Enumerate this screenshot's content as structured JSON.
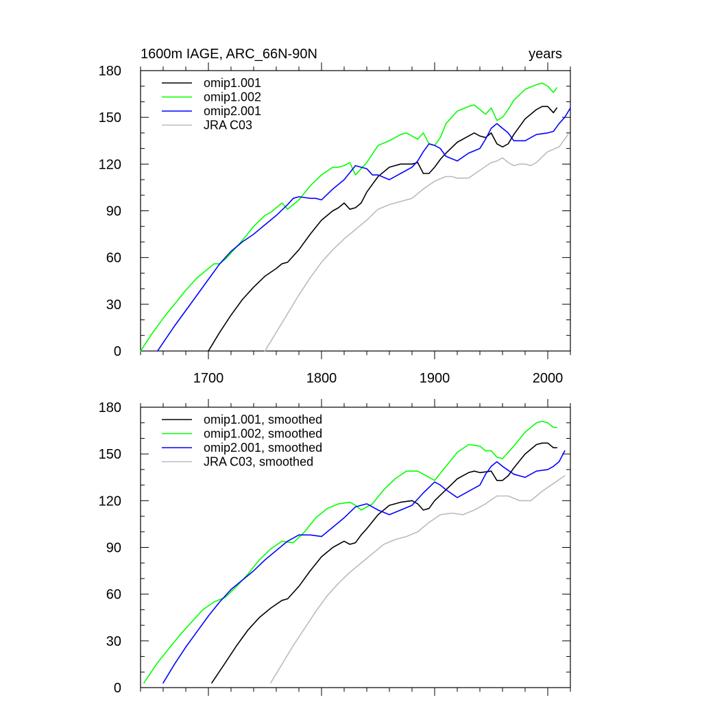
{
  "chart_data": [
    {
      "type": "line",
      "title": "1600m IAGE, ARC_66N-90N",
      "units": "years",
      "xlabel": "",
      "ylabel": "",
      "xlim": [
        1640,
        2020
      ],
      "ylim": [
        0,
        180
      ],
      "xticks": [
        1700,
        1800,
        1900,
        2000
      ],
      "yticks": [
        0,
        30,
        60,
        90,
        120,
        150,
        180
      ],
      "grid": false,
      "legend_position": "top-left",
      "series": [
        {
          "name": "omip1.001",
          "color": "#000000",
          "x": [
            1700,
            1710,
            1720,
            1730,
            1740,
            1750,
            1760,
            1765,
            1770,
            1780,
            1790,
            1800,
            1810,
            1815,
            1820,
            1825,
            1830,
            1835,
            1840,
            1850,
            1860,
            1870,
            1880,
            1885,
            1890,
            1895,
            1900,
            1905,
            1910,
            1920,
            1930,
            1935,
            1940,
            1945,
            1950,
            1955,
            1960,
            1965,
            1970,
            1980,
            1990,
            1995,
            2000,
            2005,
            2008
          ],
          "values": [
            0,
            12,
            23,
            33,
            41,
            48,
            53,
            56,
            57,
            65,
            75,
            84,
            90,
            92,
            95,
            91,
            92,
            95,
            102,
            112,
            118,
            120,
            120,
            121,
            114,
            114,
            118,
            123,
            127,
            134,
            138,
            140,
            138,
            137,
            140,
            133,
            131,
            133,
            139,
            149,
            155,
            157,
            157,
            153,
            156
          ]
        },
        {
          "name": "omip1.002",
          "color": "#00ff00",
          "x": [
            1640,
            1650,
            1660,
            1670,
            1680,
            1690,
            1700,
            1705,
            1710,
            1715,
            1720,
            1730,
            1740,
            1750,
            1755,
            1760,
            1765,
            1770,
            1780,
            1790,
            1800,
            1810,
            1815,
            1820,
            1825,
            1830,
            1840,
            1850,
            1860,
            1870,
            1875,
            1880,
            1885,
            1890,
            1895,
            1900,
            1905,
            1910,
            1920,
            1930,
            1935,
            1940,
            1945,
            1950,
            1955,
            1960,
            1965,
            1970,
            1980,
            1990,
            1995,
            2000,
            2005,
            2008
          ],
          "values": [
            0,
            11,
            21,
            30,
            39,
            47,
            53,
            56,
            56,
            59,
            63,
            71,
            80,
            87,
            89,
            92,
            95,
            91,
            97,
            106,
            113,
            118,
            118,
            119,
            121,
            113,
            121,
            132,
            135,
            139,
            140,
            138,
            136,
            140,
            133,
            132,
            137,
            146,
            154,
            157,
            158,
            155,
            152,
            156,
            148,
            150,
            155,
            161,
            168,
            171,
            172,
            170,
            166,
            169
          ]
        },
        {
          "name": "omip2.001",
          "color": "#0000ff",
          "x": [
            1655,
            1670,
            1685,
            1700,
            1710,
            1720,
            1730,
            1740,
            1750,
            1760,
            1770,
            1775,
            1780,
            1790,
            1795,
            1800,
            1810,
            1820,
            1830,
            1840,
            1845,
            1850,
            1860,
            1870,
            1880,
            1885,
            1890,
            1895,
            1900,
            1905,
            1910,
            1920,
            1930,
            1940,
            1945,
            1950,
            1955,
            1960,
            1965,
            1970,
            1980,
            1990,
            2000,
            2005,
            2010,
            2015,
            2020
          ],
          "values": [
            0,
            16,
            31,
            46,
            56,
            64,
            70,
            75,
            81,
            87,
            94,
            98,
            99,
            98,
            98,
            97,
            104,
            110,
            119,
            117,
            113,
            113,
            110,
            114,
            118,
            122,
            128,
            133,
            132,
            130,
            125,
            122,
            127,
            130,
            136,
            143,
            146,
            143,
            140,
            135,
            135,
            139,
            140,
            141,
            146,
            150,
            156
          ]
        },
        {
          "name": "JRA C03",
          "color": "#bbbbbb",
          "x": [
            1750,
            1760,
            1770,
            1780,
            1790,
            1800,
            1810,
            1820,
            1830,
            1840,
            1850,
            1860,
            1870,
            1880,
            1890,
            1900,
            1910,
            1915,
            1920,
            1925,
            1930,
            1940,
            1950,
            1955,
            1960,
            1965,
            1970,
            1975,
            1980,
            1985,
            1990,
            2000,
            2010,
            2018
          ],
          "values": [
            0,
            12,
            24,
            36,
            47,
            57,
            65,
            72,
            78,
            84,
            91,
            94,
            96,
            98,
            104,
            109,
            112,
            112,
            111,
            111,
            111,
            116,
            121,
            122,
            124,
            121,
            119,
            120,
            120,
            119,
            121,
            128,
            131,
            139
          ]
        }
      ]
    },
    {
      "type": "line",
      "title": "",
      "units": "",
      "xlabel": "",
      "ylabel": "",
      "xlim": [
        1640,
        2020
      ],
      "ylim": [
        0,
        180
      ],
      "xticks": [
        1700,
        1800,
        1900,
        2000
      ],
      "yticks": [
        0,
        30,
        60,
        90,
        120,
        150,
        180
      ],
      "grid": false,
      "legend_position": "top-left",
      "series": [
        {
          "name": "omip1.001, smoothed",
          "color": "#000000",
          "x": [
            1703,
            1715,
            1725,
            1735,
            1745,
            1755,
            1765,
            1770,
            1780,
            1790,
            1800,
            1810,
            1820,
            1825,
            1830,
            1835,
            1840,
            1850,
            1860,
            1870,
            1880,
            1885,
            1890,
            1895,
            1900,
            1910,
            1920,
            1930,
            1935,
            1940,
            1950,
            1955,
            1960,
            1965,
            1970,
            1980,
            1990,
            1995,
            2000,
            2005,
            2008
          ],
          "values": [
            3,
            16,
            27,
            37,
            45,
            51,
            56,
            57,
            65,
            75,
            84,
            90,
            94,
            92,
            93,
            98,
            102,
            111,
            117,
            119,
            120,
            118,
            114,
            115,
            120,
            127,
            134,
            138,
            139,
            138,
            139,
            133,
            133,
            136,
            141,
            150,
            156,
            157,
            157,
            154,
            154
          ]
        },
        {
          "name": "omip1.002, smoothed",
          "color": "#00ff00",
          "x": [
            1643,
            1655,
            1665,
            1675,
            1685,
            1695,
            1705,
            1715,
            1725,
            1735,
            1745,
            1755,
            1765,
            1775,
            1785,
            1795,
            1805,
            1815,
            1825,
            1830,
            1835,
            1845,
            1855,
            1865,
            1875,
            1885,
            1895,
            1900,
            1910,
            1920,
            1930,
            1940,
            1945,
            1950,
            1955,
            1960,
            1970,
            1980,
            1990,
            1995,
            2000,
            2005,
            2008
          ],
          "values": [
            3,
            16,
            25,
            34,
            42,
            50,
            55,
            58,
            65,
            73,
            82,
            89,
            94,
            93,
            100,
            109,
            115,
            118,
            119,
            117,
            114,
            118,
            127,
            134,
            139,
            139,
            135,
            133,
            142,
            151,
            156,
            155,
            152,
            152,
            148,
            147,
            155,
            164,
            170,
            171,
            170,
            167,
            167
          ]
        },
        {
          "name": "omip2.001, smoothed",
          "color": "#0000ff",
          "x": [
            1660,
            1670,
            1680,
            1690,
            1700,
            1710,
            1720,
            1730,
            1740,
            1750,
            1760,
            1770,
            1780,
            1790,
            1800,
            1810,
            1820,
            1830,
            1840,
            1845,
            1850,
            1860,
            1870,
            1880,
            1890,
            1900,
            1905,
            1910,
            1920,
            1930,
            1940,
            1945,
            1950,
            1955,
            1960,
            1970,
            1980,
            1990,
            2000,
            2005,
            2010,
            2015
          ],
          "values": [
            3,
            15,
            26,
            36,
            46,
            55,
            63,
            69,
            75,
            82,
            88,
            94,
            98,
            98,
            97,
            103,
            109,
            116,
            118,
            116,
            114,
            111,
            114,
            117,
            125,
            132,
            130,
            127,
            122,
            126,
            130,
            137,
            142,
            145,
            142,
            137,
            135,
            139,
            140,
            142,
            145,
            152
          ]
        },
        {
          "name": "JRA C03, smoothed",
          "color": "#bbbbbb",
          "x": [
            1755,
            1765,
            1775,
            1785,
            1795,
            1805,
            1815,
            1825,
            1835,
            1845,
            1855,
            1865,
            1875,
            1885,
            1895,
            1905,
            1915,
            1925,
            1935,
            1945,
            1955,
            1965,
            1975,
            1985,
            1995,
            2005,
            2015
          ],
          "values": [
            3,
            15,
            27,
            38,
            49,
            59,
            67,
            74,
            80,
            86,
            92,
            95,
            97,
            100,
            106,
            111,
            112,
            111,
            114,
            118,
            123,
            123,
            120,
            120,
            126,
            131,
            136
          ]
        }
      ]
    }
  ]
}
